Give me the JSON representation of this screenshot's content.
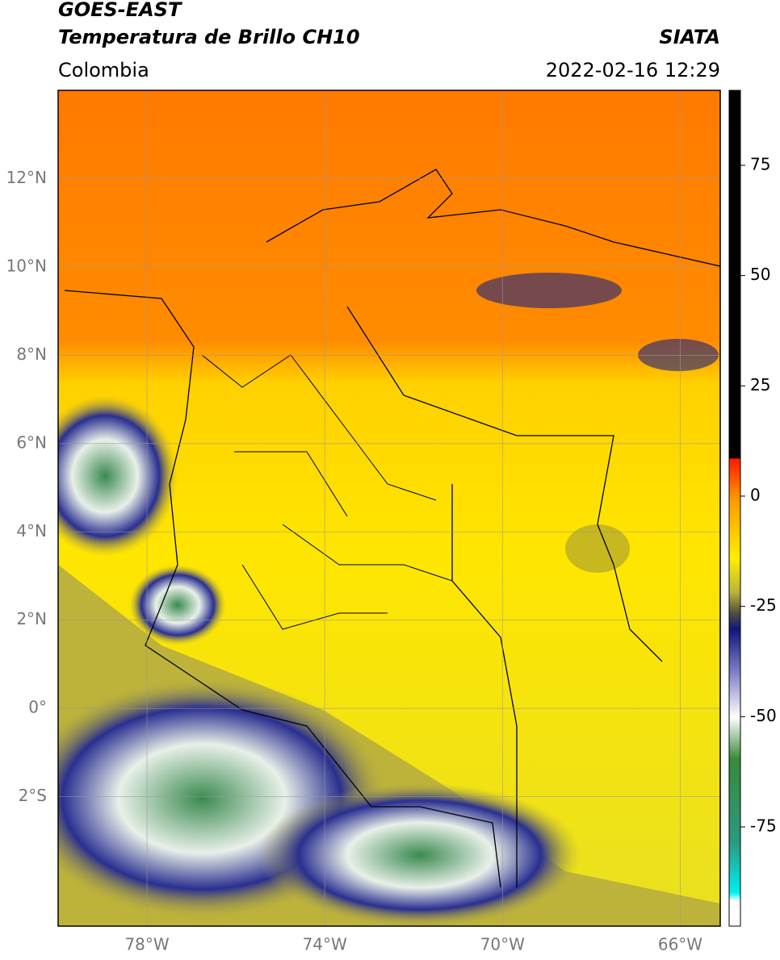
{
  "header": {
    "title": "GOES-EAST",
    "subtitle": "Temperatura de Brillo CH10",
    "region": "Colombia",
    "source": "SIATA",
    "datetime": "2022-02-16 12:29"
  },
  "map": {
    "lonlim": [
      -80,
      -65.1
    ],
    "latlim": [
      -4.93,
      14
    ],
    "lat_ticks": [
      {
        "value": 12,
        "label": "12°N"
      },
      {
        "value": 10,
        "label": "10°N"
      },
      {
        "value": 8,
        "label": "8°N"
      },
      {
        "value": 6,
        "label": "6°N"
      },
      {
        "value": 4,
        "label": "4°N"
      },
      {
        "value": 2,
        "label": "2°N"
      },
      {
        "value": 0,
        "label": "0°"
      },
      {
        "value": -2,
        "label": "2°S"
      }
    ],
    "lon_ticks": [
      {
        "value": -78,
        "label": "78°W"
      },
      {
        "value": -74,
        "label": "74°W"
      },
      {
        "value": -70,
        "label": "70°W"
      },
      {
        "value": -66,
        "label": "66°W"
      }
    ]
  },
  "colorbar": {
    "lim": [
      -97.5,
      92
    ],
    "ticks": [
      75,
      50,
      25,
      0,
      -25,
      -50,
      -75
    ]
  }
}
